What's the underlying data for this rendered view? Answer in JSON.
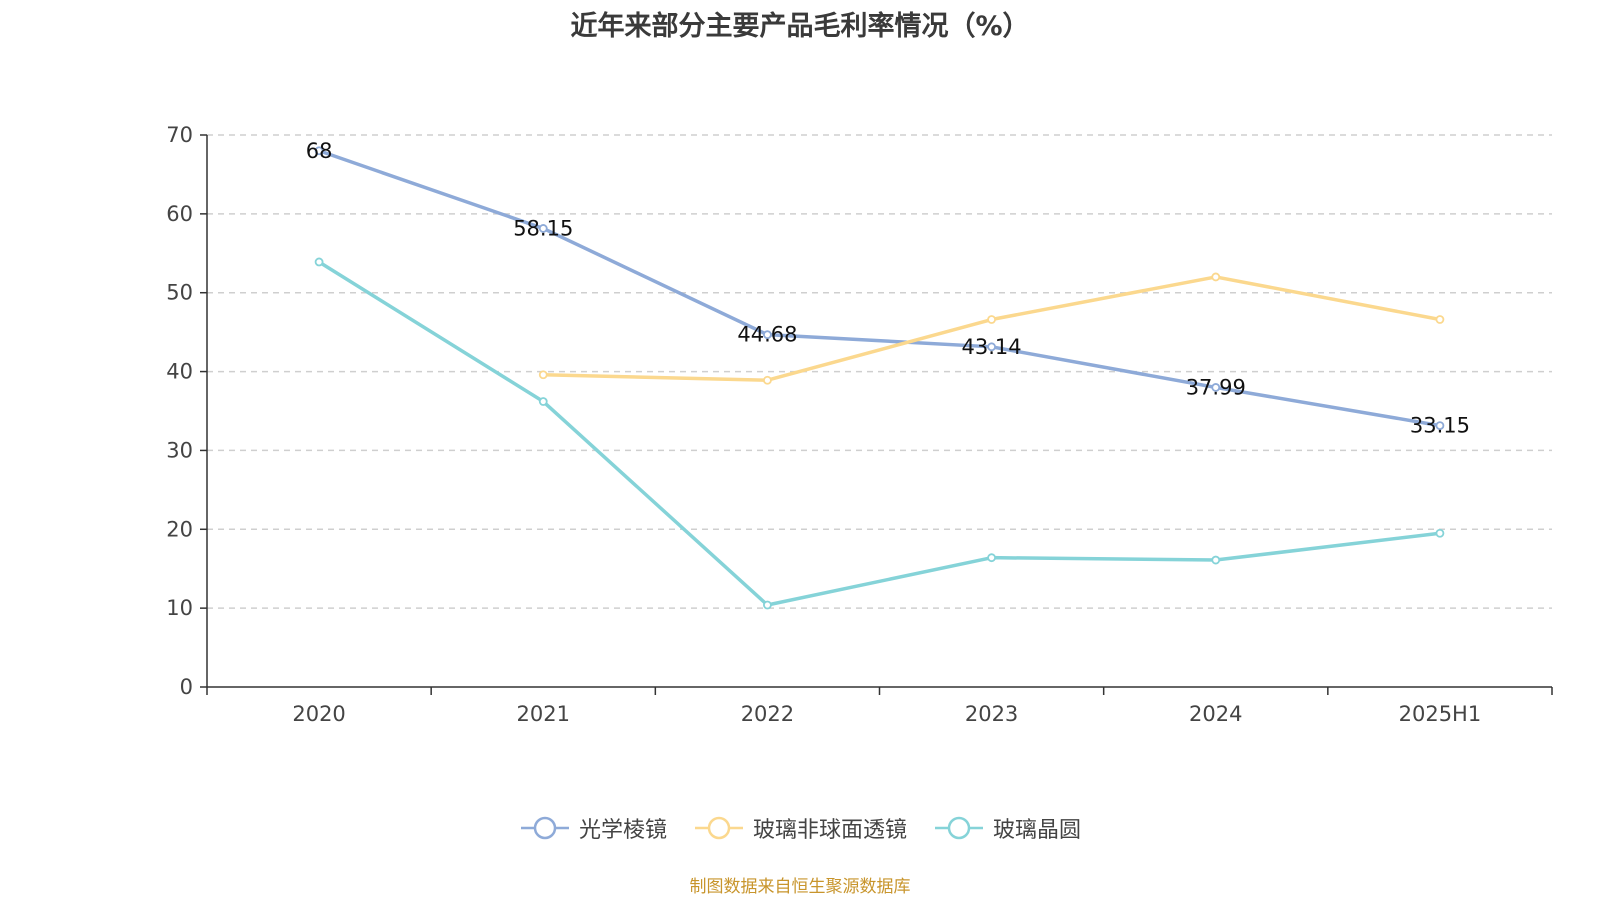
{
  "title": "近年来部分主要产品毛利率情况（%）",
  "source": "制图数据来自恒生聚源数据库",
  "chart_data": {
    "type": "line",
    "title": "近年来部分主要产品毛利率情况（%）",
    "categories": [
      "2020",
      "2021",
      "2022",
      "2023",
      "2024",
      "2025H1"
    ],
    "ylim": [
      0,
      70
    ],
    "yticks": [
      0,
      10,
      20,
      30,
      40,
      50,
      60,
      70
    ],
    "grid": true,
    "legend_position": "bottom",
    "series": [
      {
        "name": "光学棱镜",
        "color": "#8eaad8",
        "values": [
          68,
          58.15,
          44.68,
          43.14,
          37.99,
          33.15
        ],
        "labels": [
          "68",
          "58.15",
          "44.68",
          "43.14",
          "37.99",
          "33.15"
        ]
      },
      {
        "name": "玻璃非球面透镜",
        "color": "#fbd88e",
        "values": [
          null,
          39.6,
          38.9,
          46.6,
          52.0,
          46.6
        ],
        "labels": []
      },
      {
        "name": "玻璃晶圆",
        "color": "#85d3d8",
        "values": [
          53.9,
          36.2,
          10.4,
          16.4,
          16.1,
          19.5
        ],
        "labels": []
      }
    ]
  }
}
